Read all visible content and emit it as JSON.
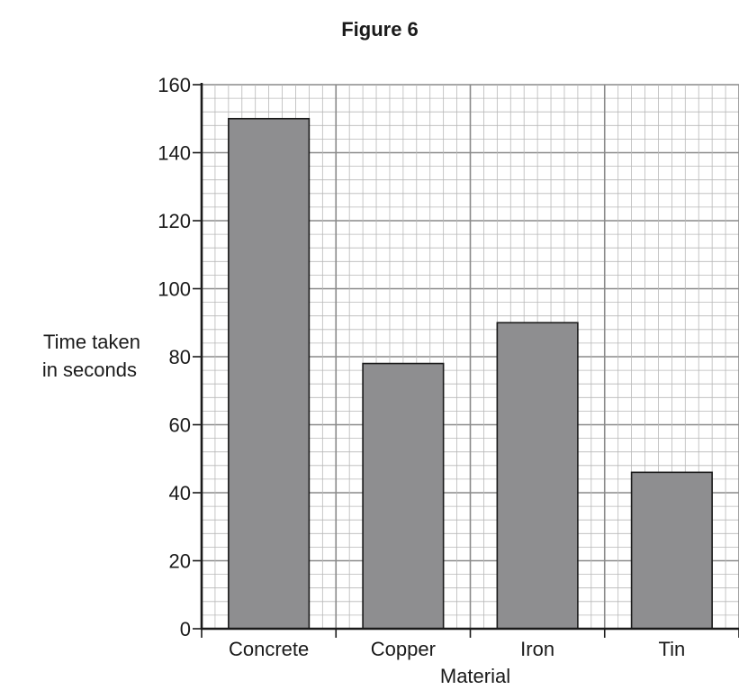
{
  "figure_title": "Figure 6",
  "chart_data": {
    "type": "bar",
    "title": "Figure 6",
    "categories": [
      "Concrete",
      "Copper",
      "Iron",
      "Tin"
    ],
    "values": [
      150,
      78,
      90,
      46
    ],
    "xlabel": "Material",
    "ylabel_lines": [
      "Time taken",
      "in seconds"
    ],
    "ylim": [
      0,
      160
    ],
    "yticks": [
      0,
      20,
      40,
      60,
      80,
      100,
      120,
      140,
      160
    ],
    "grid": true,
    "bar_color": "#8e8e90",
    "grid_minor_color": "#b8b8b8",
    "grid_major_color": "#8a8a8a",
    "axis_color": "#1a1a1a"
  }
}
